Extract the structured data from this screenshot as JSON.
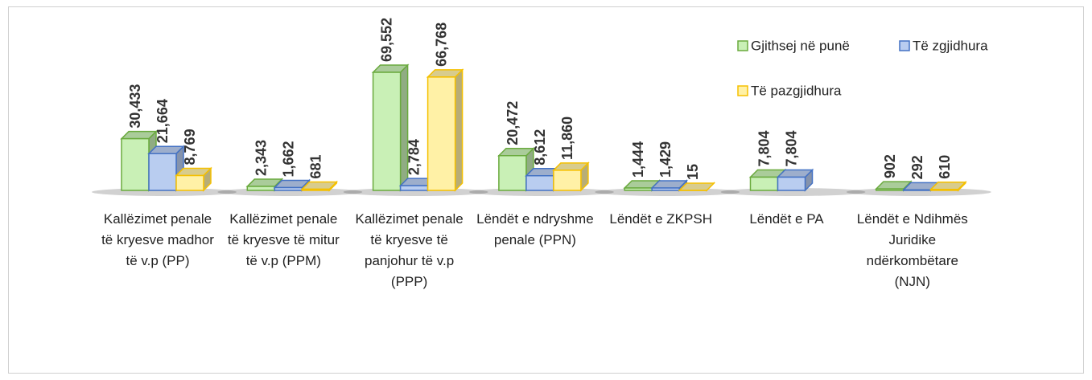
{
  "chart_data": {
    "type": "bar3d",
    "categories": [
      "Kallëzimet penale të kryesve madhor të v.p (PP)",
      "Kallëzimet penale të kryesve të mitur të v.p (PPM)",
      "Kallëzimet penale të kryesve të panjohur të v.p (PPP)",
      "Lëndët e ndryshme penale (PPN)",
      "Lëndët e ZKPSH",
      "Lëndët e PA",
      "Lëndët e Ndihmës Juridike ndërkombëtare (NJN)"
    ],
    "series": [
      {
        "name": "Gjithsej në punë",
        "color": "#c9f0b6",
        "edge": "#6aaa3e",
        "values": [
          30433,
          2343,
          69552,
          20472,
          1444,
          7804,
          902
        ],
        "value_labels": [
          "30,433",
          "2,343",
          "69,552",
          "20,472",
          "1,444",
          "7,804",
          "902"
        ]
      },
      {
        "name": "Të zgjidhura",
        "color": "#b9cdf0",
        "edge": "#4472c4",
        "values": [
          21664,
          1662,
          2784,
          8612,
          1429,
          7804,
          292
        ],
        "value_labels": [
          "21,664",
          "1,662",
          "2,784",
          "8,612",
          "1,429",
          "7,804",
          "292"
        ]
      },
      {
        "name": "Të pazgjidhura",
        "color": "#fff1a6",
        "edge": "#f5c000",
        "values": [
          8769,
          681,
          66768,
          11860,
          15,
          null,
          610
        ],
        "value_labels": [
          "8,769",
          "681",
          "66,768",
          "11,860",
          "15",
          null,
          "610"
        ]
      }
    ]
  }
}
